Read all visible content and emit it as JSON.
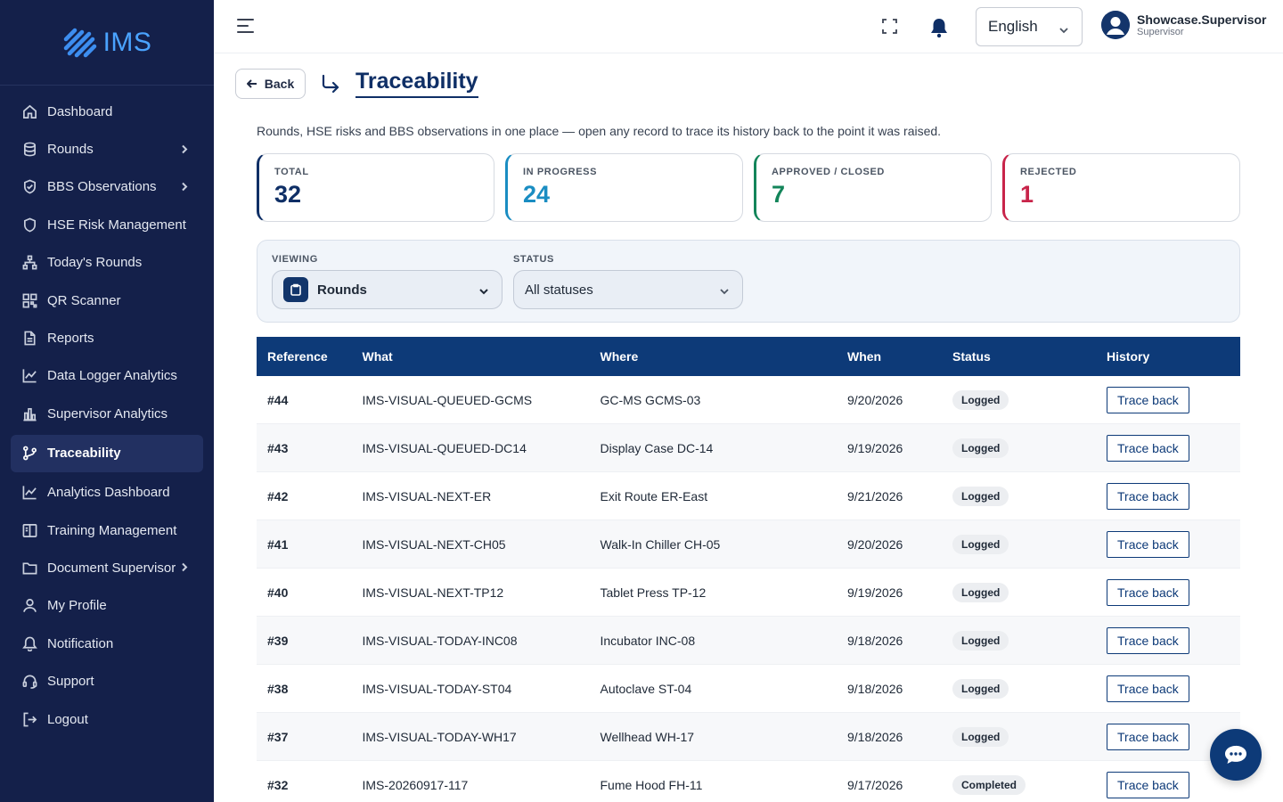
{
  "app": {
    "logo_text": "IMS"
  },
  "sidebar": {
    "items": [
      {
        "label": "Dashboard",
        "icon": "home-icon",
        "has_submenu": false
      },
      {
        "label": "Rounds",
        "icon": "database-icon",
        "has_submenu": true
      },
      {
        "label": "BBS Observations",
        "icon": "shield-check-icon",
        "has_submenu": true
      },
      {
        "label": "HSE Risk Management",
        "icon": "shield-icon",
        "has_submenu": false
      },
      {
        "label": "Today's Rounds",
        "icon": "sitemap-icon",
        "has_submenu": false
      },
      {
        "label": "QR Scanner",
        "icon": "qr-code-icon",
        "has_submenu": false
      },
      {
        "label": "Reports",
        "icon": "document-icon",
        "has_submenu": false
      },
      {
        "label": "Data Logger Analytics",
        "icon": "line-chart-icon",
        "has_submenu": false
      },
      {
        "label": "Supervisor Analytics",
        "icon": "bar-chart-icon",
        "has_submenu": false
      },
      {
        "label": "Traceability",
        "icon": "git-branch-icon",
        "has_submenu": false,
        "active": true
      },
      {
        "label": "Analytics Dashboard",
        "icon": "line-chart-icon",
        "has_submenu": false
      },
      {
        "label": "Training Management",
        "icon": "book-icon",
        "has_submenu": false
      },
      {
        "label": "Document Supervisor",
        "icon": "folder-icon",
        "has_submenu": true
      },
      {
        "label": "My Profile",
        "icon": "user-icon",
        "has_submenu": false
      },
      {
        "label": "Notification",
        "icon": "bell-icon",
        "has_submenu": false
      },
      {
        "label": "Support",
        "icon": "headset-icon",
        "has_submenu": false
      },
      {
        "label": "Logout",
        "icon": "logout-icon",
        "has_submenu": false
      }
    ]
  },
  "header": {
    "language": "English",
    "user_name": "Showcase.Supervisor",
    "user_role": "Supervisor"
  },
  "page": {
    "back_label": "Back",
    "title": "Traceability",
    "subtitle": "Rounds, HSE risks and BBS observations in one place — open any record to trace its history back to the point it was raised."
  },
  "stats": [
    {
      "label": "TOTAL",
      "value": "32",
      "color": "#0f2f66"
    },
    {
      "label": "IN PROGRESS",
      "value": "24",
      "color": "#1a8dc2"
    },
    {
      "label": "APPROVED / CLOSED",
      "value": "7",
      "color": "#13855a"
    },
    {
      "label": "REJECTED",
      "value": "1",
      "color": "#c8244a"
    }
  ],
  "filters": {
    "viewing_label": "VIEWING",
    "viewing_value": "Rounds",
    "status_label": "STATUS",
    "status_value": "All statuses"
  },
  "table": {
    "headers": [
      "Reference",
      "What",
      "Where",
      "When",
      "Status",
      "History"
    ],
    "action_label": "Trace back",
    "rows": [
      {
        "ref": "#44",
        "what": "IMS-VISUAL-QUEUED-GCMS",
        "where": "GC-MS GCMS-03",
        "when": "9/20/2026",
        "status": "Logged"
      },
      {
        "ref": "#43",
        "what": "IMS-VISUAL-QUEUED-DC14",
        "where": "Display Case DC-14",
        "when": "9/19/2026",
        "status": "Logged"
      },
      {
        "ref": "#42",
        "what": "IMS-VISUAL-NEXT-ER",
        "where": "Exit Route ER-East",
        "when": "9/21/2026",
        "status": "Logged"
      },
      {
        "ref": "#41",
        "what": "IMS-VISUAL-NEXT-CH05",
        "where": "Walk-In Chiller CH-05",
        "when": "9/20/2026",
        "status": "Logged"
      },
      {
        "ref": "#40",
        "what": "IMS-VISUAL-NEXT-TP12",
        "where": "Tablet Press TP-12",
        "when": "9/19/2026",
        "status": "Logged"
      },
      {
        "ref": "#39",
        "what": "IMS-VISUAL-TODAY-INC08",
        "where": "Incubator INC-08",
        "when": "9/18/2026",
        "status": "Logged"
      },
      {
        "ref": "#38",
        "what": "IMS-VISUAL-TODAY-ST04",
        "where": "Autoclave ST-04",
        "when": "9/18/2026",
        "status": "Logged"
      },
      {
        "ref": "#37",
        "what": "IMS-VISUAL-TODAY-WH17",
        "where": "Wellhead WH-17",
        "when": "9/18/2026",
        "status": "Logged"
      },
      {
        "ref": "#32",
        "what": "IMS-20260917-117",
        "where": "Fume Hood FH-11",
        "when": "9/17/2026",
        "status": "Completed"
      }
    ]
  }
}
